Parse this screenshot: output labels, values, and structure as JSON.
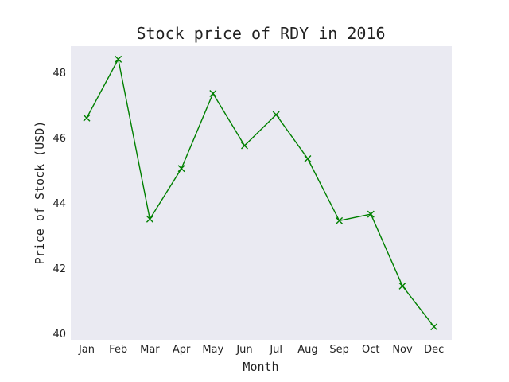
{
  "chart_data": {
    "type": "line",
    "title": "Stock price of RDY in 2016",
    "xlabel": "Month",
    "ylabel": "Price of Stock (USD)",
    "categories": [
      "Jan",
      "Feb",
      "Mar",
      "Apr",
      "May",
      "Jun",
      "Jul",
      "Aug",
      "Sep",
      "Oct",
      "Nov",
      "Dec"
    ],
    "series": [
      {
        "values": [
          46.6,
          48.4,
          43.5,
          45.05,
          47.35,
          45.75,
          46.7,
          45.35,
          43.45,
          43.65,
          41.45,
          40.2
        ]
      }
    ],
    "ylim": [
      39.8,
      48.8
    ],
    "yticks": [
      40,
      42,
      44,
      46,
      48
    ],
    "grid": false,
    "marker": "x",
    "colors": {
      "line": "#008000",
      "plot_background": "#eaeaf2",
      "page_background": "#ffffff",
      "text": "#222222"
    }
  }
}
